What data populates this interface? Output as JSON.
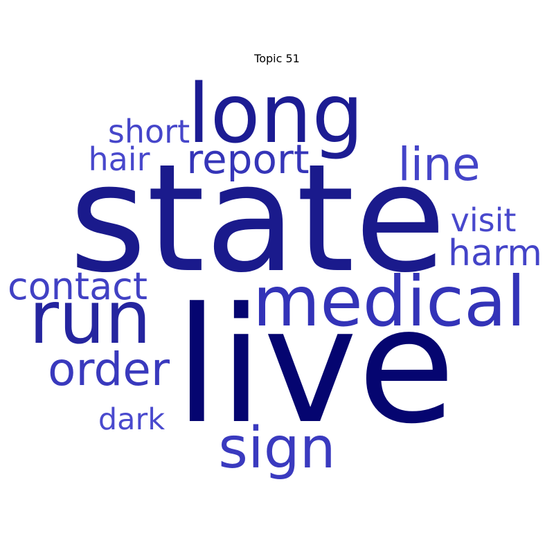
{
  "title": "Topic 51",
  "words": [
    {
      "text": "live",
      "weight": 1.0,
      "color": "#050570"
    },
    {
      "text": "state",
      "weight": 0.97,
      "color": "#1a1a8c"
    },
    {
      "text": "long",
      "weight": 0.55,
      "color": "#1c1c93"
    },
    {
      "text": "medical",
      "weight": 0.52,
      "color": "#3333b8"
    },
    {
      "text": "run",
      "weight": 0.5,
      "color": "#25259f"
    },
    {
      "text": "sign",
      "weight": 0.43,
      "color": "#3a3abf"
    },
    {
      "text": "order",
      "weight": 0.35,
      "color": "#3939bd"
    },
    {
      "text": "line",
      "weight": 0.34,
      "color": "#4444c8"
    },
    {
      "text": "report",
      "weight": 0.31,
      "color": "#3535b8"
    },
    {
      "text": "contact",
      "weight": 0.28,
      "color": "#4141c4"
    },
    {
      "text": "harm",
      "weight": 0.27,
      "color": "#4444c8"
    },
    {
      "text": "short",
      "weight": 0.25,
      "color": "#4646ca"
    },
    {
      "text": "visit",
      "weight": 0.25,
      "color": "#4848cc"
    },
    {
      "text": "hair",
      "weight": 0.24,
      "color": "#4848cc"
    },
    {
      "text": "dark",
      "weight": 0.23,
      "color": "#4a4ace"
    }
  ]
}
